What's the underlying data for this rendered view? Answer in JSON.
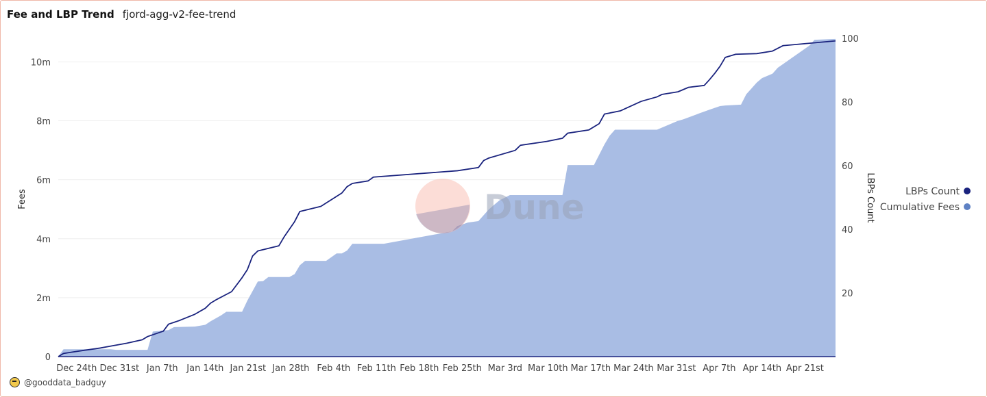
{
  "header": {
    "title": "Fee and LBP Trend",
    "subtitle": "fjord-agg-v2-fee-trend"
  },
  "footer": {
    "author": "@gooddata_badguy"
  },
  "watermark": "Dune",
  "chart_data": {
    "type": "line+area",
    "xlabel": "",
    "ylabel_left": "Fees",
    "ylabel_right": "LBPs Count",
    "ylim_left": [
      0,
      10800000
    ],
    "ylim_right": [
      0,
      100
    ],
    "y_left_ticks": [
      "0",
      "2m",
      "4m",
      "6m",
      "8m",
      "10m"
    ],
    "y_left_tick_values": [
      0,
      2000000,
      4000000,
      6000000,
      8000000,
      10000000
    ],
    "y_right_ticks": [
      "20",
      "40",
      "60",
      "80",
      "100"
    ],
    "y_right_tick_values": [
      20,
      40,
      60,
      80,
      100
    ],
    "x_ticks": [
      "Dec 24th",
      "Dec 31st",
      "Jan 7th",
      "Jan 14th",
      "Jan 21st",
      "Jan 28th",
      "Feb 4th",
      "Feb 11th",
      "Feb 18th",
      "Feb 25th",
      "Mar 3rd",
      "Mar 10th",
      "Mar 17th",
      "Mar 24th",
      "Mar 31st",
      "Apr 7th",
      "Apr 14th",
      "Apr 21st"
    ],
    "x_tick_days": [
      3,
      10,
      17,
      24,
      31,
      38,
      45,
      52,
      59,
      66,
      73,
      80,
      87,
      94,
      101,
      108,
      115,
      122
    ],
    "x_range_days": [
      0,
      127
    ],
    "legend_position": "right",
    "grid": true,
    "colors": {
      "LBPs Count": "#1a237e",
      "Cumulative Fees": "#a9bde4",
      "legend_fees_dot": "#5f82c4"
    },
    "series": [
      {
        "name": "LBPs Count",
        "axis": "right",
        "kind": "line",
        "points": [
          [
            0,
            0
          ],
          [
            1,
            1
          ],
          [
            3,
            1.5
          ],
          [
            5,
            2
          ],
          [
            8,
            2.7
          ],
          [
            10,
            3.3
          ],
          [
            13,
            4.2
          ],
          [
            16,
            5.3
          ],
          [
            17,
            6.3
          ],
          [
            20,
            8
          ],
          [
            21,
            10.2
          ],
          [
            23,
            11.3
          ],
          [
            26,
            13.3
          ],
          [
            28,
            15.2
          ],
          [
            29,
            16.8
          ],
          [
            30,
            17.8
          ],
          [
            33,
            20.4
          ],
          [
            35,
            24.8
          ],
          [
            36,
            27.3
          ],
          [
            37,
            31.6
          ],
          [
            38,
            33.2
          ],
          [
            42,
            34.8
          ],
          [
            43,
            37.6
          ],
          [
            45,
            42.4
          ],
          [
            46,
            45.6
          ],
          [
            50,
            47.2
          ],
          [
            54,
            51.4
          ],
          [
            55,
            53.4
          ],
          [
            56,
            54.4
          ],
          [
            59,
            55.2
          ],
          [
            60,
            56.4
          ],
          [
            76,
            58.4
          ],
          [
            80,
            59.4
          ],
          [
            81,
            61.6
          ],
          [
            82,
            62.4
          ],
          [
            87,
            64.8
          ],
          [
            88,
            66.4
          ],
          [
            93,
            67.6
          ],
          [
            96,
            68.6
          ],
          [
            97,
            70.2
          ],
          [
            101,
            71.2
          ],
          [
            103,
            73.2
          ],
          [
            104,
            76.2
          ],
          [
            107,
            77.2
          ],
          [
            111,
            80.2
          ],
          [
            114,
            81.6
          ],
          [
            115,
            82.4
          ],
          [
            118,
            83.2
          ],
          [
            120,
            84.6
          ],
          [
            123,
            85.2
          ],
          [
            124,
            87
          ],
          [
            125,
            89
          ],
          [
            126,
            91.2
          ],
          [
            127,
            94
          ],
          [
            129,
            95
          ],
          [
            133,
            95.2
          ],
          [
            136,
            96
          ],
          [
            138,
            97.7
          ],
          [
            148,
            99.2
          ]
        ]
      },
      {
        "name": "Cumulative Fees",
        "axis": "left",
        "kind": "area",
        "points": [
          [
            0,
            0
          ],
          [
            1,
            250000
          ],
          [
            10,
            250000
          ],
          [
            11,
            230000
          ],
          [
            17,
            230000
          ],
          [
            18,
            850000
          ],
          [
            21,
            900000
          ],
          [
            22,
            1000000
          ],
          [
            26,
            1020000
          ],
          [
            28,
            1080000
          ],
          [
            29,
            1200000
          ],
          [
            31,
            1400000
          ],
          [
            32,
            1520000
          ],
          [
            35,
            1520000
          ],
          [
            36,
            1900000
          ],
          [
            38,
            2550000
          ],
          [
            39,
            2560000
          ],
          [
            40,
            2700000
          ],
          [
            44,
            2700000
          ],
          [
            45,
            2800000
          ],
          [
            46,
            3100000
          ],
          [
            47,
            3250000
          ],
          [
            51,
            3250000
          ],
          [
            53,
            3500000
          ],
          [
            54,
            3500000
          ],
          [
            55,
            3600000
          ],
          [
            56,
            3830000
          ],
          [
            62,
            3830000
          ],
          [
            75,
            4250000
          ],
          [
            76,
            4430000
          ],
          [
            78,
            4550000
          ],
          [
            80,
            4600000
          ],
          [
            82,
            5000000
          ],
          [
            84,
            5300000
          ],
          [
            86,
            5480000
          ],
          [
            88,
            5480000
          ],
          [
            96,
            5480000
          ],
          [
            97,
            6500000
          ],
          [
            102,
            6500000
          ],
          [
            104,
            7200000
          ],
          [
            105,
            7500000
          ],
          [
            106,
            7700000
          ],
          [
            109,
            7700000
          ],
          [
            114,
            7700000
          ],
          [
            116,
            7850000
          ],
          [
            118,
            8000000
          ],
          [
            119,
            8050000
          ],
          [
            122,
            8250000
          ],
          [
            124,
            8380000
          ],
          [
            126,
            8500000
          ],
          [
            127,
            8520000
          ],
          [
            130,
            8550000
          ],
          [
            131,
            8900000
          ],
          [
            132,
            9100000
          ],
          [
            133,
            9300000
          ],
          [
            134,
            9450000
          ],
          [
            136,
            9600000
          ],
          [
            137,
            9800000
          ],
          [
            139,
            10050000
          ],
          [
            141,
            10300000
          ],
          [
            143,
            10550000
          ],
          [
            144,
            10750000
          ],
          [
            148,
            10780000
          ]
        ]
      }
    ]
  }
}
